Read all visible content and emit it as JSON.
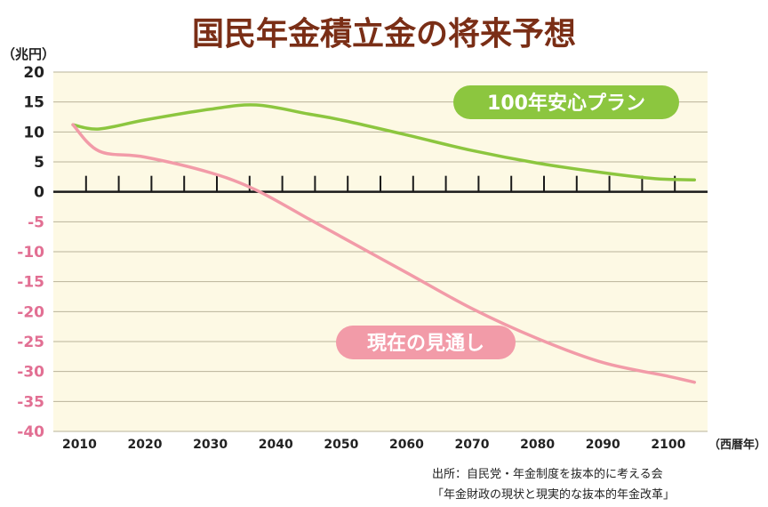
{
  "chart_data": {
    "type": "line",
    "title": "国民年金積立金の将来予想",
    "ylabel": "（兆円）",
    "xlabel": "（西暦年）",
    "ylim": [
      -40,
      20
    ],
    "xlim": [
      2006,
      2106
    ],
    "y_ticks": [
      20,
      15,
      10,
      5,
      0,
      -5,
      -10,
      -15,
      -20,
      -25,
      -30,
      -35,
      -40
    ],
    "x_ticks": [
      2010,
      2020,
      2030,
      2040,
      2050,
      2060,
      2070,
      2080,
      2090,
      2100
    ],
    "grid": true,
    "series": [
      {
        "name": "100年安心プラン",
        "color": "#8cc63f",
        "x": [
          2009,
          2013,
          2020,
          2030,
          2037,
          2045,
          2050,
          2060,
          2070,
          2080,
          2090,
          2098,
          2104
        ],
        "y": [
          11.2,
          10.5,
          12.0,
          13.8,
          14.5,
          13.0,
          12.0,
          9.5,
          6.9,
          4.8,
          3.2,
          2.2,
          2.0
        ]
      },
      {
        "name": "現在の見通し",
        "color": "#f29ba8",
        "x": [
          2009,
          2013,
          2020,
          2030,
          2037,
          2045,
          2050,
          2060,
          2070,
          2080,
          2090,
          2100,
          2104
        ],
        "y": [
          11.2,
          6.8,
          5.8,
          3.2,
          0.3,
          -4.5,
          -7.5,
          -13.5,
          -19.5,
          -24.5,
          -28.5,
          -30.8,
          -31.8
        ]
      }
    ]
  },
  "source": {
    "line1": "出所：自民党・年金制度を抜本的に考える会",
    "line2": "「年金財政の現状と現実的な抜本的年金改革」"
  }
}
